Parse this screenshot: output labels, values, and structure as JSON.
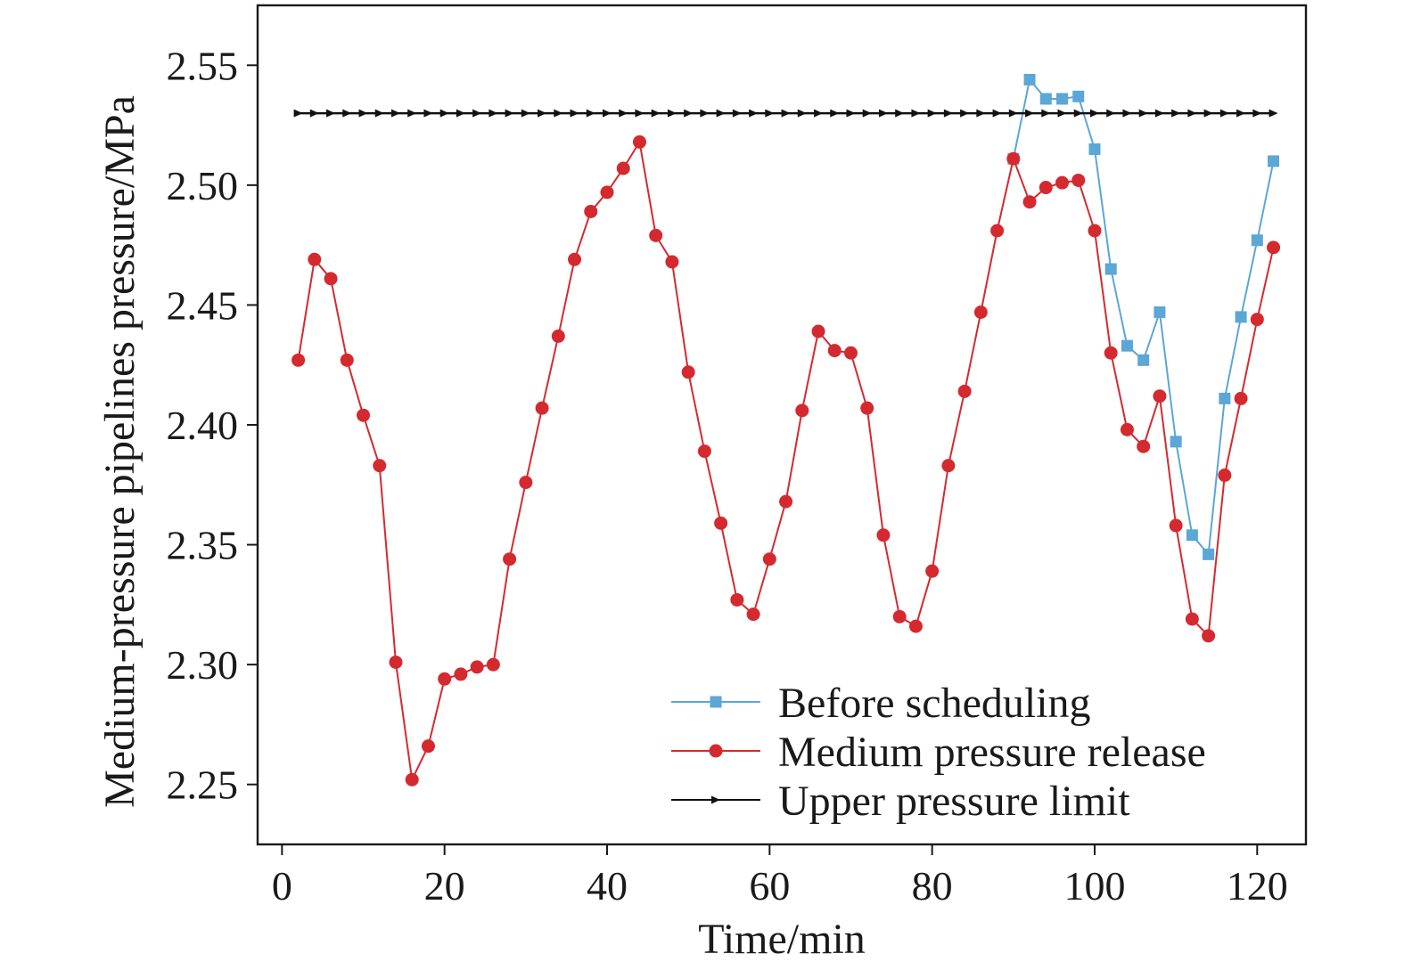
{
  "chart_data": {
    "type": "line",
    "title": "",
    "xlabel": "Time/min",
    "ylabel": "Medium-pressure pipelines pressure/MPa",
    "xlim": [
      -3,
      126
    ],
    "ylim": [
      2.225,
      2.575
    ],
    "xticks": [
      0,
      20,
      40,
      60,
      80,
      100,
      120
    ],
    "yticks": [
      2.25,
      2.3,
      2.35,
      2.4,
      2.45,
      2.5,
      2.55
    ],
    "xtick_labels": [
      "0",
      "20",
      "40",
      "60",
      "80",
      "100",
      "120"
    ],
    "ytick_labels": [
      "2.25",
      "2.30",
      "2.35",
      "2.40",
      "2.45",
      "2.50",
      "2.55"
    ],
    "grid": false,
    "legend_position": "bottom-right",
    "series": [
      {
        "name": "Before scheduling",
        "color": "#5ba7d6",
        "marker": "square",
        "x": [
          90,
          92,
          94,
          96,
          98,
          100,
          102,
          104,
          106,
          108,
          110,
          112,
          114,
          116,
          118,
          120,
          122
        ],
        "values": [
          2.511,
          2.544,
          2.536,
          2.536,
          2.537,
          2.515,
          2.465,
          2.433,
          2.427,
          2.447,
          2.393,
          2.354,
          2.346,
          2.411,
          2.445,
          2.477,
          2.51
        ]
      },
      {
        "name": "Medium pressure release",
        "color": "#d42a2f",
        "marker": "circle",
        "x": [
          2,
          4,
          6,
          8,
          10,
          12,
          14,
          16,
          18,
          20,
          22,
          24,
          26,
          28,
          30,
          32,
          34,
          36,
          38,
          40,
          42,
          44,
          46,
          48,
          50,
          52,
          54,
          56,
          58,
          60,
          62,
          64,
          66,
          68,
          70,
          72,
          74,
          76,
          78,
          80,
          82,
          84,
          86,
          88,
          90,
          92,
          94,
          96,
          98,
          100,
          102,
          104,
          106,
          108,
          110,
          112,
          114,
          116,
          118,
          120,
          122
        ],
        "values": [
          2.427,
          2.469,
          2.461,
          2.427,
          2.404,
          2.383,
          2.301,
          2.252,
          2.266,
          2.294,
          2.296,
          2.299,
          2.3,
          2.344,
          2.376,
          2.407,
          2.437,
          2.469,
          2.489,
          2.497,
          2.507,
          2.518,
          2.479,
          2.468,
          2.422,
          2.389,
          2.359,
          2.327,
          2.321,
          2.344,
          2.368,
          2.406,
          2.439,
          2.431,
          2.43,
          2.407,
          2.354,
          2.32,
          2.316,
          2.339,
          2.383,
          2.414,
          2.447,
          2.481,
          2.511,
          2.493,
          2.499,
          2.501,
          2.502,
          2.481,
          2.43,
          2.398,
          2.391,
          2.412,
          2.358,
          2.319,
          2.312,
          2.379,
          2.411,
          2.444,
          2.474
        ]
      },
      {
        "name": "Upper pressure limit",
        "color": "#111111",
        "marker": "triangle-right",
        "x": [
          2,
          4,
          6,
          8,
          10,
          12,
          14,
          16,
          18,
          20,
          22,
          24,
          26,
          28,
          30,
          32,
          34,
          36,
          38,
          40,
          42,
          44,
          46,
          48,
          50,
          52,
          54,
          56,
          58,
          60,
          62,
          64,
          66,
          68,
          70,
          72,
          74,
          76,
          78,
          80,
          82,
          84,
          86,
          88,
          90,
          92,
          94,
          96,
          98,
          100,
          102,
          104,
          106,
          108,
          110,
          112,
          114,
          116,
          118,
          120,
          122
        ],
        "values": [
          2.53,
          2.53,
          2.53,
          2.53,
          2.53,
          2.53,
          2.53,
          2.53,
          2.53,
          2.53,
          2.53,
          2.53,
          2.53,
          2.53,
          2.53,
          2.53,
          2.53,
          2.53,
          2.53,
          2.53,
          2.53,
          2.53,
          2.53,
          2.53,
          2.53,
          2.53,
          2.53,
          2.53,
          2.53,
          2.53,
          2.53,
          2.53,
          2.53,
          2.53,
          2.53,
          2.53,
          2.53,
          2.53,
          2.53,
          2.53,
          2.53,
          2.53,
          2.53,
          2.53,
          2.53,
          2.53,
          2.53,
          2.53,
          2.53,
          2.53,
          2.53,
          2.53,
          2.53,
          2.53,
          2.53,
          2.53,
          2.53,
          2.53,
          2.53,
          2.53,
          2.53
        ]
      }
    ]
  }
}
